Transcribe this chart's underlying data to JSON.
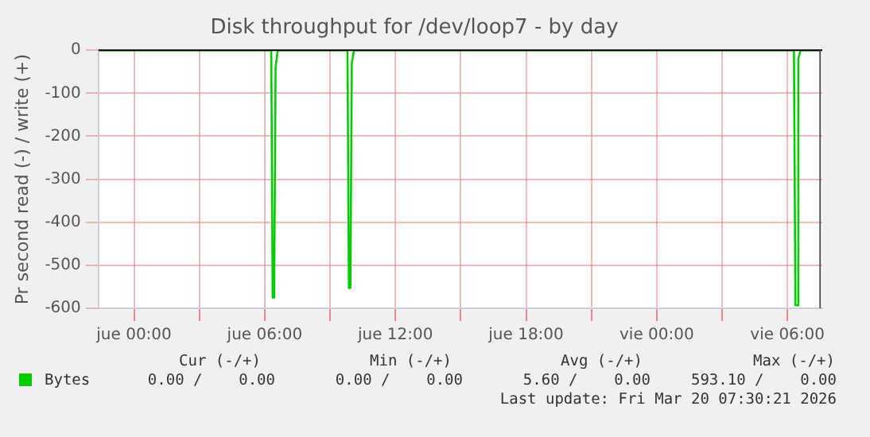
{
  "chart_data": {
    "type": "line",
    "title": "Disk throughput for /dev/loop7 - by day",
    "ylabel": "Pr second read (-) / write (+)",
    "series": [
      {
        "name": "Bytes",
        "color": "#00cc00",
        "x": [
          "2026-03-18T22:24",
          "2026-03-19T06:18",
          "2026-03-19T06:22",
          "2026-03-19T06:26",
          "2026-03-19T06:30",
          "2026-03-19T06:36",
          "2026-03-19T09:48",
          "2026-03-19T09:52",
          "2026-03-19T09:56",
          "2026-03-19T10:00",
          "2026-03-19T10:06",
          "2026-03-20T06:18",
          "2026-03-20T06:22",
          "2026-03-20T06:26",
          "2026-03-20T06:30",
          "2026-03-20T06:36",
          "2026-03-20T07:30"
        ],
        "values": [
          0,
          0,
          -575,
          -575,
          -40,
          0,
          0,
          -553,
          -553,
          -30,
          0,
          0,
          -593,
          -593,
          -20,
          0,
          0
        ]
      }
    ],
    "xlim": [
      "2026-03-18T22:22",
      "2026-03-20T07:36"
    ],
    "xticks": [
      {
        "value": "2026-03-19T00:00",
        "label": "jue 00:00"
      },
      {
        "value": "2026-03-19T03:00",
        "label": null
      },
      {
        "value": "2026-03-19T06:00",
        "label": "jue 06:00"
      },
      {
        "value": "2026-03-19T09:00",
        "label": null
      },
      {
        "value": "2026-03-19T12:00",
        "label": "jue 12:00"
      },
      {
        "value": "2026-03-19T15:00",
        "label": null
      },
      {
        "value": "2026-03-19T18:00",
        "label": "jue 18:00"
      },
      {
        "value": "2026-03-19T21:00",
        "label": null
      },
      {
        "value": "2026-03-20T00:00",
        "label": "vie 00:00"
      },
      {
        "value": "2026-03-20T03:00",
        "label": null
      },
      {
        "value": "2026-03-20T06:00",
        "label": "vie 06:00"
      }
    ],
    "ylim": [
      -600,
      0
    ],
    "yticks": [
      -600,
      -500,
      -400,
      -300,
      -200,
      -100,
      0
    ],
    "grid": true,
    "legend": "bottom left",
    "marker": "none",
    "line_style": "solid",
    "ref_lines": [
      {
        "axis": "y",
        "value": 0,
        "color": "#000000"
      },
      {
        "axis": "x",
        "value": "2026-03-20T07:30",
        "color": "#555555"
      }
    ],
    "annotations": [
      "Cur (-/+)",
      "Min (-/+)",
      "Avg (-/+)",
      "Max (-/+)",
      "0.00 /    0.00",
      "0.00 /    0.00",
      "5.60 /    0.00",
      "593.10 /    0.00",
      "Last update: Fri Mar 20 07:30:21 2026"
    ]
  }
}
